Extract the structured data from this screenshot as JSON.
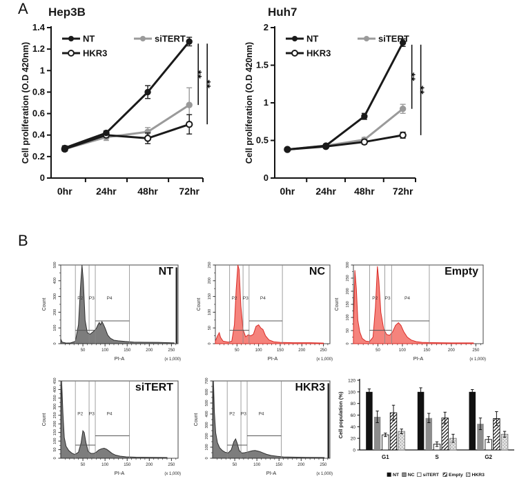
{
  "panels": {
    "a_label": "A",
    "b_label": "B"
  },
  "chart_data": [
    {
      "kind": "line",
      "type": "line",
      "title": "Hep3B",
      "ylabel": "Cell proliferation (O.D 420nm)",
      "categories": [
        "0hr",
        "24hr",
        "48hr",
        "72hr"
      ],
      "ylim": [
        0,
        1.4
      ],
      "yticks": [
        "0",
        "0.2",
        "0.4",
        "0.6",
        "0.8",
        "1",
        "1.2",
        "1.4"
      ],
      "grid": false,
      "legend_position": "top-left-inside",
      "series": [
        {
          "name": "NT",
          "color": "#1a1a1a",
          "marker": "filled",
          "values": [
            0.28,
            0.42,
            0.8,
            1.27
          ],
          "errors": [
            0.02,
            0.02,
            0.06,
            0.04
          ]
        },
        {
          "name": "siTERT",
          "color": "#9a9a9a",
          "marker": "filled",
          "values": [
            0.27,
            0.38,
            0.43,
            0.68
          ],
          "errors": [
            0.02,
            0.03,
            0.04,
            0.16
          ]
        },
        {
          "name": "HKR3",
          "color": "#1a1a1a",
          "marker": "open",
          "values": [
            0.27,
            0.4,
            0.37,
            0.5
          ],
          "errors": [
            0.02,
            0.02,
            0.05,
            0.09
          ]
        }
      ],
      "significance": [
        {
          "from": 0,
          "to": 1,
          "label": "**"
        },
        {
          "from": 0,
          "to": 2,
          "label": "**"
        }
      ]
    },
    {
      "kind": "line",
      "type": "line",
      "title": "Huh7",
      "ylabel": "Cell proliferation (O.D 420nm)",
      "categories": [
        "0hr",
        "24hr",
        "48hr",
        "72hr"
      ],
      "ylim": [
        0,
        2
      ],
      "yticks": [
        "0",
        "0.5",
        "1",
        "1.5",
        "2"
      ],
      "grid": false,
      "legend_position": "top-left-inside",
      "series": [
        {
          "name": "NT",
          "color": "#1a1a1a",
          "marker": "filled",
          "values": [
            0.38,
            0.43,
            0.82,
            1.8
          ],
          "errors": [
            0.02,
            0.02,
            0.04,
            0.05
          ]
        },
        {
          "name": "siTERT",
          "color": "#9a9a9a",
          "marker": "filled",
          "values": [
            0.38,
            0.43,
            0.51,
            0.92
          ],
          "errors": [
            0.02,
            0.02,
            0.03,
            0.06
          ]
        },
        {
          "name": "HKR3",
          "color": "#1a1a1a",
          "marker": "open",
          "values": [
            0.38,
            0.42,
            0.48,
            0.57
          ],
          "errors": [
            0.02,
            0.02,
            0.03,
            0.04
          ]
        }
      ],
      "significance": [
        {
          "from": 0,
          "to": 1,
          "label": "**"
        },
        {
          "from": 0,
          "to": 2,
          "label": "**"
        }
      ]
    },
    {
      "kind": "histogram",
      "type": "area",
      "name": "NT",
      "xlabel": "PI-A",
      "x_unit": "(x 1,000)",
      "ylabel": "Count",
      "xmax": 265,
      "xticks": [
        50,
        100,
        150,
        200,
        250
      ],
      "ymax": 500,
      "ystep": 100,
      "fill": "#7d7d7d",
      "stroke": "#2e2e2e",
      "edge_spike": true,
      "gates": [
        "P2",
        "P3",
        "P4"
      ],
      "curve": [
        [
          0,
          30
        ],
        [
          3,
          10
        ],
        [
          12,
          4
        ],
        [
          22,
          5
        ],
        [
          33,
          15
        ],
        [
          40,
          120
        ],
        [
          45,
          380
        ],
        [
          48,
          500
        ],
        [
          51,
          400
        ],
        [
          55,
          150
        ],
        [
          60,
          70
        ],
        [
          66,
          60
        ],
        [
          73,
          75
        ],
        [
          80,
          95
        ],
        [
          84,
          120
        ],
        [
          87,
          135
        ],
        [
          90,
          120
        ],
        [
          93,
          140
        ],
        [
          96,
          125
        ],
        [
          100,
          100
        ],
        [
          106,
          55
        ],
        [
          112,
          35
        ],
        [
          120,
          22
        ],
        [
          130,
          18
        ],
        [
          145,
          14
        ],
        [
          165,
          10
        ],
        [
          190,
          9
        ],
        [
          220,
          8
        ],
        [
          245,
          6
        ],
        [
          256,
          5
        ]
      ]
    },
    {
      "kind": "histogram",
      "type": "area",
      "name": "NC",
      "xlabel": "PI-A",
      "x_unit": "(x 1,000)",
      "ylabel": "Count",
      "xmax": 265,
      "xticks": [
        50,
        100,
        150,
        200,
        250
      ],
      "ymax": 250,
      "ystep": 50,
      "fill": "#f5837c",
      "stroke": "#d92b26",
      "edge_spike": false,
      "gates": [
        "P2",
        "P3",
        "P4"
      ],
      "curve": [
        [
          0,
          8
        ],
        [
          5,
          25
        ],
        [
          9,
          35
        ],
        [
          12,
          20
        ],
        [
          18,
          8
        ],
        [
          30,
          5
        ],
        [
          38,
          8
        ],
        [
          44,
          60
        ],
        [
          48,
          170
        ],
        [
          52,
          250
        ],
        [
          55,
          235
        ],
        [
          59,
          120
        ],
        [
          64,
          45
        ],
        [
          70,
          22
        ],
        [
          76,
          28
        ],
        [
          82,
          25
        ],
        [
          88,
          30
        ],
        [
          94,
          55
        ],
        [
          100,
          60
        ],
        [
          105,
          50
        ],
        [
          110,
          45
        ],
        [
          116,
          25
        ],
        [
          124,
          12
        ],
        [
          135,
          6
        ],
        [
          150,
          4
        ],
        [
          180,
          3
        ],
        [
          220,
          3
        ],
        [
          250,
          2
        ]
      ]
    },
    {
      "kind": "histogram",
      "type": "area",
      "name": "Empty",
      "xlabel": "PI-A",
      "x_unit": "(x 1,000)",
      "ylabel": "Count",
      "xmax": 265,
      "xticks": [
        50,
        100,
        150,
        200,
        250
      ],
      "ymax": 300,
      "ystep": 50,
      "fill": "#f5837c",
      "stroke": "#d92b26",
      "edge_spike": false,
      "gates": [
        "P2",
        "P3",
        "P4"
      ],
      "curve": [
        [
          0,
          60
        ],
        [
          3,
          280
        ],
        [
          6,
          210
        ],
        [
          9,
          90
        ],
        [
          13,
          45
        ],
        [
          18,
          20
        ],
        [
          25,
          10
        ],
        [
          33,
          8
        ],
        [
          40,
          25
        ],
        [
          45,
          140
        ],
        [
          49,
          295
        ],
        [
          52,
          240
        ],
        [
          56,
          120
        ],
        [
          62,
          55
        ],
        [
          68,
          35
        ],
        [
          74,
          32
        ],
        [
          80,
          45
        ],
        [
          86,
          70
        ],
        [
          92,
          80
        ],
        [
          97,
          70
        ],
        [
          103,
          45
        ],
        [
          110,
          25
        ],
        [
          118,
          14
        ],
        [
          128,
          8
        ],
        [
          140,
          5
        ],
        [
          160,
          4
        ],
        [
          200,
          3
        ],
        [
          245,
          3
        ]
      ]
    },
    {
      "kind": "histogram",
      "type": "area",
      "name": "siTERT",
      "xlabel": "PI-A",
      "x_unit": "(x 1,000)",
      "ylabel": "Count",
      "xmax": 265,
      "xticks": [
        50,
        100,
        150,
        200,
        250
      ],
      "ymax": 450,
      "ystep": 50,
      "fill": "#7d7d7d",
      "stroke": "#2e2e2e",
      "edge_spike": false,
      "gates": [
        "P2",
        "P3",
        "P4"
      ],
      "curve": [
        [
          0,
          80
        ],
        [
          2,
          450
        ],
        [
          5,
          260
        ],
        [
          8,
          120
        ],
        [
          12,
          70
        ],
        [
          18,
          45
        ],
        [
          25,
          30
        ],
        [
          32,
          22
        ],
        [
          40,
          35
        ],
        [
          46,
          90
        ],
        [
          50,
          160
        ],
        [
          53,
          150
        ],
        [
          57,
          90
        ],
        [
          62,
          40
        ],
        [
          68,
          28
        ],
        [
          74,
          28
        ],
        [
          80,
          35
        ],
        [
          86,
          48
        ],
        [
          92,
          55
        ],
        [
          98,
          58
        ],
        [
          104,
          52
        ],
        [
          110,
          40
        ],
        [
          116,
          28
        ],
        [
          124,
          18
        ],
        [
          134,
          12
        ],
        [
          148,
          8
        ],
        [
          170,
          6
        ],
        [
          200,
          5
        ],
        [
          240,
          4
        ]
      ]
    },
    {
      "kind": "histogram",
      "type": "area",
      "name": "HKR3",
      "xlabel": "PI-A",
      "x_unit": "(x 1,000)",
      "ylabel": "Count",
      "xmax": 265,
      "xticks": [
        50,
        100,
        150,
        200,
        250
      ],
      "ymax": 700,
      "ystep": 100,
      "fill": "#7d7d7d",
      "stroke": "#2e2e2e",
      "edge_spike": true,
      "gates": [
        "P2",
        "P3",
        "P4"
      ],
      "curve": [
        [
          0,
          100
        ],
        [
          2,
          700
        ],
        [
          4,
          420
        ],
        [
          7,
          230
        ],
        [
          11,
          140
        ],
        [
          16,
          95
        ],
        [
          22,
          70
        ],
        [
          28,
          55
        ],
        [
          35,
          48
        ],
        [
          42,
          75
        ],
        [
          48,
          150
        ],
        [
          52,
          175
        ],
        [
          56,
          130
        ],
        [
          60,
          70
        ],
        [
          66,
          48
        ],
        [
          72,
          50
        ],
        [
          78,
          55
        ],
        [
          84,
          62
        ],
        [
          90,
          68
        ],
        [
          96,
          70
        ],
        [
          102,
          65
        ],
        [
          108,
          58
        ],
        [
          114,
          48
        ],
        [
          122,
          35
        ],
        [
          132,
          25
        ],
        [
          145,
          18
        ],
        [
          160,
          12
        ],
        [
          180,
          10
        ],
        [
          210,
          8
        ],
        [
          240,
          7
        ],
        [
          252,
          6
        ]
      ]
    },
    {
      "kind": "bar",
      "type": "bar",
      "ylabel": "Cell population (%)",
      "ylim": [
        0,
        120
      ],
      "yticks": [
        0,
        20,
        40,
        60,
        80,
        100,
        120
      ],
      "categories": [
        "G1",
        "S",
        "G2"
      ],
      "legend_position": "bottom",
      "series": [
        {
          "name": "NT",
          "style": "black",
          "values": [
            100,
            100,
            100
          ],
          "errors": [
            5,
            7,
            4
          ]
        },
        {
          "name": "NC",
          "style": "gray",
          "values": [
            57,
            55,
            45
          ],
          "errors": [
            10,
            8,
            10
          ]
        },
        {
          "name": "siTERT",
          "style": "white",
          "values": [
            26,
            10,
            18
          ],
          "errors": [
            3,
            4,
            5
          ]
        },
        {
          "name": "Empty",
          "style": "hatch",
          "values": [
            64,
            55,
            54
          ],
          "errors": [
            13,
            10,
            12
          ]
        },
        {
          "name": "HKR3",
          "style": "dots",
          "values": [
            32,
            20,
            27
          ],
          "errors": [
            4,
            7,
            5
          ]
        }
      ]
    }
  ]
}
